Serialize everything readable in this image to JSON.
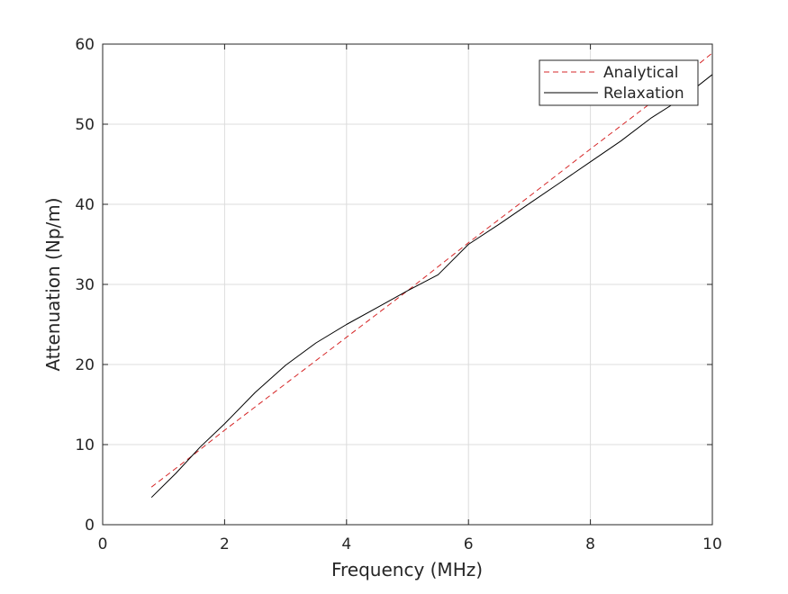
{
  "chart_data": {
    "type": "line",
    "title": "",
    "xlabel": "Frequency (MHz)",
    "ylabel": "Attenuation (Np/m)",
    "xlim": [
      0,
      10
    ],
    "ylim": [
      0,
      60
    ],
    "xticks": [
      0,
      2,
      4,
      6,
      8,
      10
    ],
    "yticks": [
      0,
      10,
      20,
      30,
      40,
      50,
      60
    ],
    "xtick_labels": [
      "0",
      "2",
      "4",
      "6",
      "8",
      "10"
    ],
    "ytick_labels": [
      "0",
      "10",
      "20",
      "30",
      "40",
      "50",
      "60"
    ],
    "grid": true,
    "legend_position": "top-right",
    "series": [
      {
        "name": "Analytical",
        "color": "#d62728",
        "style": "dashed",
        "x": [
          0.8,
          1.5,
          2,
          3,
          4,
          5,
          6,
          7,
          8,
          9,
          10
        ],
        "y": [
          4.7,
          8.8,
          11.8,
          17.6,
          23.4,
          29.2,
          35.2,
          41.0,
          46.9,
          52.7,
          58.9
        ]
      },
      {
        "name": "Relaxation",
        "color": "#000000",
        "style": "solid",
        "x": [
          0.8,
          1.2,
          1.6,
          2,
          2.5,
          3,
          3.5,
          4,
          4.5,
          5,
          5.5,
          6,
          6.5,
          7,
          7.5,
          8,
          8.5,
          9,
          9.5,
          10
        ],
        "y": [
          3.4,
          6.4,
          9.7,
          12.6,
          16.5,
          19.9,
          22.7,
          25.0,
          27.1,
          29.2,
          31.2,
          35.0,
          37.5,
          40.1,
          42.7,
          45.3,
          47.9,
          50.8,
          53.2,
          56.2
        ]
      }
    ]
  }
}
